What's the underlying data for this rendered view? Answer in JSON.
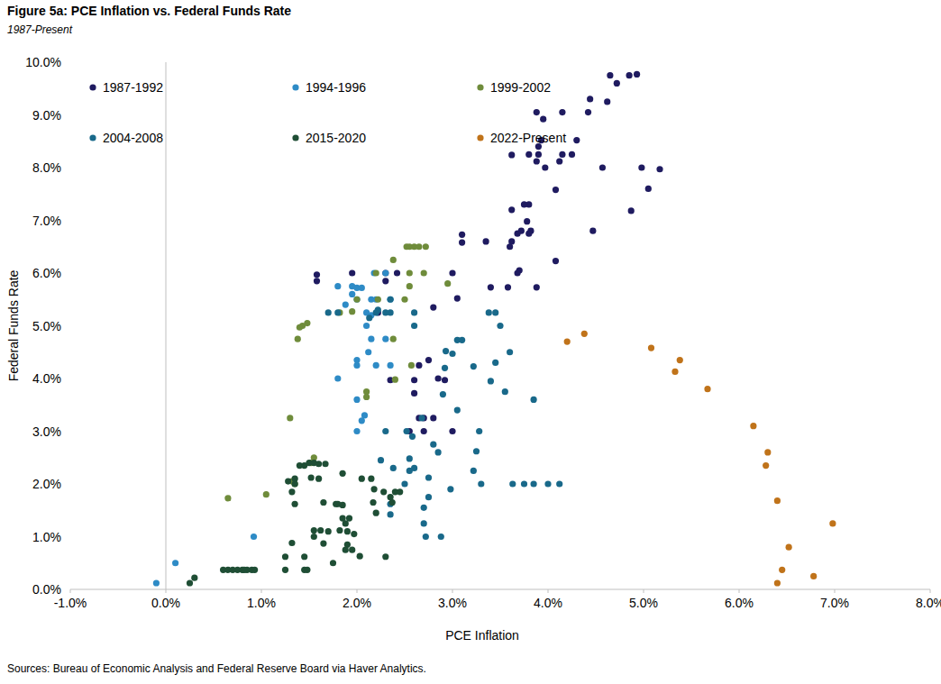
{
  "chart_data": {
    "type": "scatter",
    "title": "Figure 5a: PCE Inflation vs. Federal Funds Rate",
    "subtitle": "1987-Present",
    "x_label": "PCE Inflation",
    "y_label": "Federal Funds Rate",
    "source": "Sources: Bureau of Economic Analysis and Federal Reserve Board via Haver Analytics.",
    "xlim": [
      -1,
      8
    ],
    "ylim": [
      0,
      10
    ],
    "xticks": [
      {
        "value": -1,
        "label": "-1.0%"
      },
      {
        "value": 0,
        "label": "0.0%"
      },
      {
        "value": 1,
        "label": "1.0%"
      },
      {
        "value": 2,
        "label": "2.0%"
      },
      {
        "value": 3,
        "label": "3.0%"
      },
      {
        "value": 4,
        "label": "4.0%"
      },
      {
        "value": 5,
        "label": "5.0%"
      },
      {
        "value": 6,
        "label": "6.0%"
      },
      {
        "value": 7,
        "label": "7.0%"
      },
      {
        "value": 8,
        "label": "8.0%"
      }
    ],
    "yticks": [
      {
        "value": 0,
        "label": "0.0%"
      },
      {
        "value": 1,
        "label": "1.0%"
      },
      {
        "value": 2,
        "label": "2.0%"
      },
      {
        "value": 3,
        "label": "3.0%"
      },
      {
        "value": 4,
        "label": "4.0%"
      },
      {
        "value": 5,
        "label": "5.0%"
      },
      {
        "value": 6,
        "label": "6.0%"
      },
      {
        "value": 7,
        "label": "7.0%"
      },
      {
        "value": 8,
        "label": "8.0%"
      },
      {
        "value": 9,
        "label": "9.0%"
      },
      {
        "value": 10,
        "label": "10.0%"
      }
    ],
    "grid": false,
    "legend": "top-left",
    "marker": "circle",
    "series": [
      {
        "name": "1987-1992",
        "color": "#1f1b60",
        "x": [
          4.65,
          4.85,
          4.93,
          4.72,
          4.44,
          4.62,
          4.42,
          3.88,
          4.15,
          3.95,
          4.3,
          3.93,
          3.9,
          3.8,
          3.62,
          3.9,
          4.15,
          4.25,
          4.12,
          3.88,
          3.97,
          4.57,
          4.98,
          5.17,
          4.08,
          5.05,
          4.87,
          3.62,
          3.8,
          3.75,
          3.78,
          3.72,
          3.82,
          3.8,
          3.68,
          3.1,
          3.1,
          3.62,
          3.35,
          3.6,
          4.47,
          4.08,
          3.7,
          3.68,
          3.0,
          2.3,
          1.95,
          1.58,
          1.58,
          2.3,
          2.42,
          3.05,
          3.4,
          3.58,
          3.88,
          2.8,
          2.22,
          2.75,
          2.65,
          2.35,
          2.6,
          2.85,
          2.92,
          2.6,
          2.65,
          2.7,
          2.8,
          2.55,
          2.7,
          3.0
        ],
        "values": [
          9.75,
          9.75,
          9.77,
          9.6,
          9.3,
          9.25,
          9.05,
          9.05,
          9.05,
          8.92,
          8.52,
          8.52,
          8.4,
          8.25,
          8.24,
          8.25,
          8.25,
          8.25,
          8.12,
          8.12,
          8.0,
          8.0,
          8.0,
          7.97,
          7.58,
          7.6,
          7.18,
          7.2,
          7.3,
          7.3,
          6.98,
          6.8,
          6.8,
          6.75,
          6.75,
          6.73,
          6.58,
          6.6,
          6.6,
          6.5,
          6.8,
          6.23,
          6.05,
          6.0,
          6.0,
          6.0,
          6.0,
          5.97,
          5.85,
          5.85,
          6.0,
          5.52,
          5.73,
          5.73,
          5.73,
          5.35,
          5.25,
          4.35,
          4.25,
          3.97,
          3.97,
          4.0,
          3.97,
          3.72,
          3.25,
          3.25,
          3.25,
          3.0,
          3.0,
          3.0
        ]
      },
      {
        "name": "1994-1996",
        "color": "#2e8bc6",
        "x": [
          1.8,
          1.95,
          2.0,
          2.05,
          1.95,
          1.88,
          2.0,
          2.15,
          2.2,
          2.18,
          2.3,
          2.1,
          2.15,
          2.35,
          2.1,
          2.3,
          2.15,
          2.12,
          2.35,
          2.0,
          2.2,
          1.8,
          2.0,
          2.08,
          2.0,
          2.05,
          0.92,
          0.1,
          -0.1,
          2.0
        ],
        "values": [
          5.75,
          5.75,
          5.72,
          5.72,
          5.6,
          5.4,
          5.5,
          5.5,
          5.5,
          6.0,
          6.0,
          5.25,
          5.2,
          5.5,
          5.0,
          4.75,
          4.75,
          4.5,
          4.25,
          4.25,
          4.25,
          4.0,
          3.6,
          3.3,
          3.0,
          3.2,
          1.0,
          0.5,
          0.12,
          4.35
        ]
      },
      {
        "name": "1999-2002",
        "color": "#6f8c3b",
        "x": [
          2.52,
          2.55,
          2.6,
          2.65,
          2.72,
          2.38,
          2.55,
          2.7,
          2.2,
          2.55,
          2.95,
          2.5,
          2.0,
          1.95,
          1.82,
          2.22,
          1.43,
          1.4,
          1.48,
          1.38,
          2.38,
          2.57,
          2.4,
          2.1,
          2.1,
          1.3,
          1.32,
          1.35,
          1.55,
          1.52,
          1.05,
          0.65
        ],
        "values": [
          6.5,
          6.5,
          6.5,
          6.5,
          6.5,
          6.25,
          6.0,
          6.0,
          6.0,
          5.75,
          5.8,
          5.5,
          5.5,
          5.27,
          5.25,
          5.5,
          5.0,
          4.97,
          5.05,
          4.75,
          4.75,
          4.25,
          3.98,
          3.75,
          3.65,
          3.25,
          2.05,
          2.0,
          2.5,
          2.4,
          1.8,
          1.73
        ]
      },
      {
        "name": "2004-2008",
        "color": "#19698a",
        "x": [
          3.63,
          3.75,
          3.85,
          4.0,
          4.12,
          3.3,
          3.22,
          2.55,
          3.85,
          3.6,
          3.5,
          3.45,
          3.38,
          3.05,
          3.1,
          2.6,
          2.6,
          2.35,
          2.3,
          2.35,
          2.2,
          2.22,
          1.7,
          1.8,
          2.13,
          2.93,
          3.0,
          2.9,
          2.92,
          3.05,
          3.22,
          3.4,
          3.45,
          3.55,
          3.28,
          3.25,
          2.75,
          2.55,
          2.8,
          2.75,
          2.6,
          2.7,
          2.72,
          2.88,
          2.98,
          2.7,
          2.35,
          2.35,
          2.25,
          2.38,
          2.52,
          2.68,
          2.58,
          2.3,
          2.5,
          2.85
        ],
        "values": [
          2.0,
          2.0,
          2.0,
          2.0,
          2.0,
          2.0,
          2.25,
          2.25,
          3.6,
          4.5,
          5.0,
          5.25,
          5.25,
          4.73,
          4.73,
          5.0,
          5.25,
          5.25,
          5.25,
          5.5,
          5.25,
          5.3,
          5.25,
          5.25,
          5.15,
          4.52,
          4.47,
          3.7,
          4.2,
          3.4,
          4.23,
          3.95,
          4.3,
          3.75,
          3.0,
          2.62,
          1.75,
          2.48,
          2.75,
          2.12,
          2.3,
          1.25,
          1.0,
          1.0,
          1.9,
          1.55,
          1.62,
          1.42,
          2.45,
          2.3,
          3.0,
          3.25,
          2.9,
          3.0,
          2.0,
          2.6
        ]
      },
      {
        "name": "2015-2020",
        "color": "#1f4e35",
        "x": [
          0.25,
          0.3,
          0.6,
          0.65,
          0.7,
          0.75,
          0.8,
          0.85,
          0.82,
          0.9,
          0.93,
          1.25,
          1.45,
          1.48,
          1.25,
          1.32,
          1.45,
          1.35,
          1.32,
          1.35,
          1.4,
          1.45,
          1.5,
          1.55,
          1.6,
          1.67,
          1.52,
          1.6,
          1.55,
          1.55,
          1.62,
          1.65,
          1.75,
          1.7,
          1.78,
          1.8,
          1.85,
          1.82,
          1.85,
          1.88,
          1.9,
          1.9,
          1.88,
          1.92,
          1.95,
          1.97,
          2.03,
          2.05,
          1.85,
          2.15,
          2.17,
          2.2,
          2.18,
          2.28,
          2.3,
          2.35,
          2.37,
          2.4,
          2.45,
          1.65,
          1.35,
          1.28
        ],
        "values": [
          0.12,
          0.22,
          0.37,
          0.37,
          0.37,
          0.37,
          0.37,
          0.37,
          0.37,
          0.37,
          0.37,
          0.37,
          0.37,
          0.37,
          0.62,
          0.88,
          0.62,
          1.62,
          1.85,
          2.0,
          2.35,
          2.35,
          2.4,
          2.4,
          2.38,
          2.38,
          2.12,
          2.1,
          1.12,
          1.0,
          1.12,
          0.87,
          0.5,
          1.1,
          1.62,
          1.62,
          1.6,
          1.12,
          1.35,
          1.25,
          1.1,
          0.85,
          0.75,
          1.35,
          0.75,
          1.05,
          0.63,
          2.1,
          2.2,
          2.1,
          1.65,
          1.45,
          1.9,
          1.85,
          0.62,
          1.75,
          1.65,
          1.85,
          1.85,
          1.65,
          2.1,
          2.05
        ]
      },
      {
        "name": "2022-Present",
        "color": "#c0731a",
        "x": [
          6.4,
          6.45,
          6.78,
          6.52,
          6.98,
          6.4,
          6.28,
          6.3,
          6.15,
          5.67,
          5.38,
          5.33,
          5.08,
          4.2,
          4.38
        ],
        "values": [
          0.12,
          0.37,
          0.25,
          0.8,
          1.25,
          1.68,
          2.35,
          2.6,
          3.1,
          3.8,
          4.35,
          4.13,
          4.58,
          4.7,
          4.85
        ]
      }
    ]
  }
}
